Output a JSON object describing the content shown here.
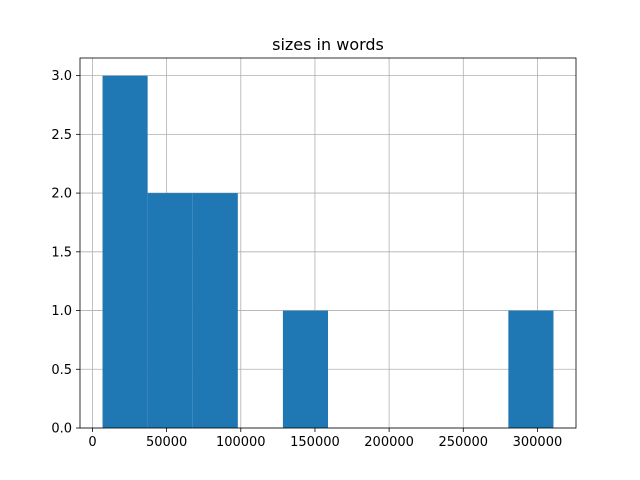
{
  "chart_data": {
    "type": "histogram",
    "title": "sizes in words",
    "bins": [
      6800,
      37200,
      67600,
      98000,
      128400,
      158800,
      189200,
      219600,
      250000,
      280400,
      310800
    ],
    "values": [
      3,
      2,
      2,
      0,
      1,
      0,
      0,
      0,
      0,
      1
    ],
    "color": "#1f77b4",
    "xlim": [
      -8400,
      326000
    ],
    "xticks": [
      0,
      50000,
      100000,
      150000,
      200000,
      250000,
      300000
    ],
    "ylim": [
      0,
      3.15
    ],
    "yticks": [
      {
        "value": 0,
        "label": "0.0"
      },
      0.5,
      {
        "value": 1,
        "label": "1.0"
      },
      1.5,
      {
        "value": 2,
        "label": "2.0"
      },
      2.5,
      {
        "value": 3,
        "label": "3.0"
      }
    ],
    "grid": true
  }
}
